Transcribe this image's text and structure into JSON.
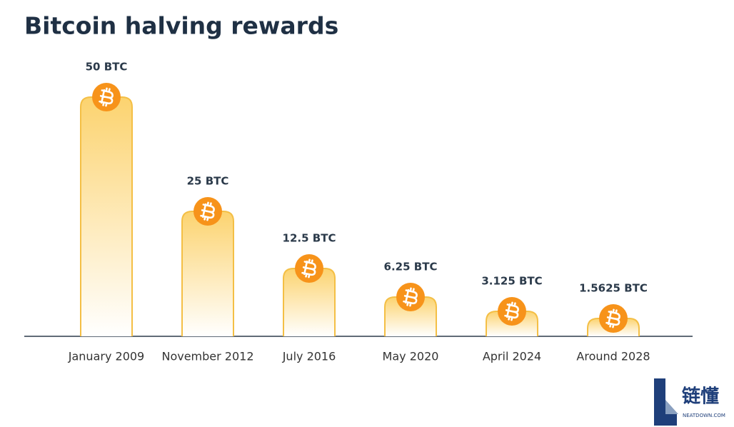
{
  "chart_data": {
    "type": "bar",
    "title": "Bitcoin halving rewards",
    "categories": [
      "January 2009",
      "November 2012",
      "July 2016",
      "May 2020",
      "April 2024",
      "Around 2028"
    ],
    "values": [
      50,
      25,
      12.5,
      6.25,
      3.125,
      1.5625
    ],
    "value_labels": [
      "50 BTC",
      "25 BTC",
      "12.5 BTC",
      "6.25 BTC",
      "3.125 BTC",
      "1.5625 BTC"
    ],
    "color": "#f7931a"
  },
  "watermark": {
    "name": "链懂",
    "url": "NEATDOWN.COM"
  }
}
